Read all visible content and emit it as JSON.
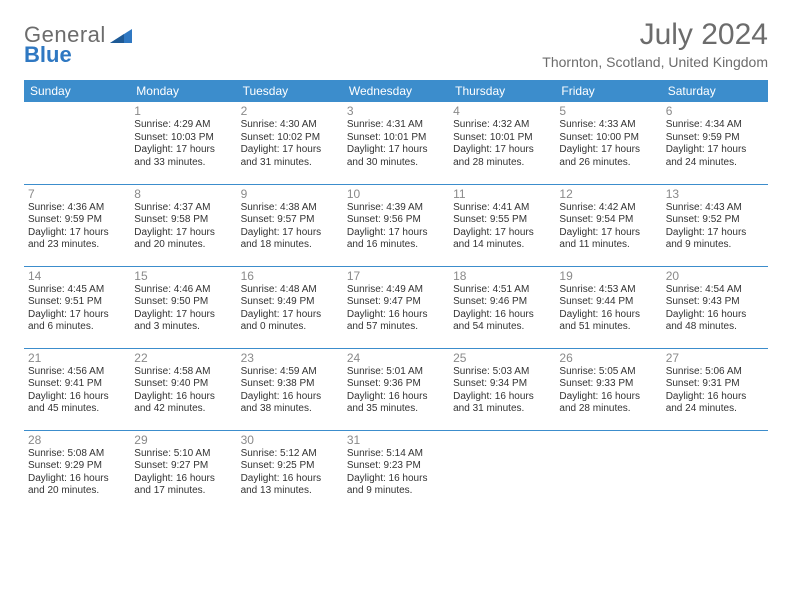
{
  "branding": {
    "word1": "General",
    "word2": "Blue",
    "word1_color": "#6c6c6c",
    "word2_color": "#2f78c2",
    "triangle_color": "#2f78c2"
  },
  "title": {
    "month_year": "July 2024",
    "location": "Thornton, Scotland, United Kingdom",
    "title_color": "#6c6c6c",
    "title_fontsize": 30,
    "location_fontsize": 14
  },
  "table_style": {
    "header_bg": "#3c8dcc",
    "header_text_color": "#ffffff",
    "separator_color": "#3c8dcc",
    "daynum_color": "#8a8a8a",
    "cell_text_color": "#333333",
    "header_fontsize": 12,
    "daynum_fontsize": 12,
    "body_fontsize": 10,
    "columns": 7
  },
  "day_headers": [
    "Sunday",
    "Monday",
    "Tuesday",
    "Wednesday",
    "Thursday",
    "Friday",
    "Saturday"
  ],
  "weeks": [
    [
      null,
      {
        "n": "1",
        "sr": "Sunrise: 4:29 AM",
        "ss": "Sunset: 10:03 PM",
        "d1": "Daylight: 17 hours",
        "d2": "and 33 minutes."
      },
      {
        "n": "2",
        "sr": "Sunrise: 4:30 AM",
        "ss": "Sunset: 10:02 PM",
        "d1": "Daylight: 17 hours",
        "d2": "and 31 minutes."
      },
      {
        "n": "3",
        "sr": "Sunrise: 4:31 AM",
        "ss": "Sunset: 10:01 PM",
        "d1": "Daylight: 17 hours",
        "d2": "and 30 minutes."
      },
      {
        "n": "4",
        "sr": "Sunrise: 4:32 AM",
        "ss": "Sunset: 10:01 PM",
        "d1": "Daylight: 17 hours",
        "d2": "and 28 minutes."
      },
      {
        "n": "5",
        "sr": "Sunrise: 4:33 AM",
        "ss": "Sunset: 10:00 PM",
        "d1": "Daylight: 17 hours",
        "d2": "and 26 minutes."
      },
      {
        "n": "6",
        "sr": "Sunrise: 4:34 AM",
        "ss": "Sunset: 9:59 PM",
        "d1": "Daylight: 17 hours",
        "d2": "and 24 minutes."
      }
    ],
    [
      {
        "n": "7",
        "sr": "Sunrise: 4:36 AM",
        "ss": "Sunset: 9:59 PM",
        "d1": "Daylight: 17 hours",
        "d2": "and 23 minutes."
      },
      {
        "n": "8",
        "sr": "Sunrise: 4:37 AM",
        "ss": "Sunset: 9:58 PM",
        "d1": "Daylight: 17 hours",
        "d2": "and 20 minutes."
      },
      {
        "n": "9",
        "sr": "Sunrise: 4:38 AM",
        "ss": "Sunset: 9:57 PM",
        "d1": "Daylight: 17 hours",
        "d2": "and 18 minutes."
      },
      {
        "n": "10",
        "sr": "Sunrise: 4:39 AM",
        "ss": "Sunset: 9:56 PM",
        "d1": "Daylight: 17 hours",
        "d2": "and 16 minutes."
      },
      {
        "n": "11",
        "sr": "Sunrise: 4:41 AM",
        "ss": "Sunset: 9:55 PM",
        "d1": "Daylight: 17 hours",
        "d2": "and 14 minutes."
      },
      {
        "n": "12",
        "sr": "Sunrise: 4:42 AM",
        "ss": "Sunset: 9:54 PM",
        "d1": "Daylight: 17 hours",
        "d2": "and 11 minutes."
      },
      {
        "n": "13",
        "sr": "Sunrise: 4:43 AM",
        "ss": "Sunset: 9:52 PM",
        "d1": "Daylight: 17 hours",
        "d2": "and 9 minutes."
      }
    ],
    [
      {
        "n": "14",
        "sr": "Sunrise: 4:45 AM",
        "ss": "Sunset: 9:51 PM",
        "d1": "Daylight: 17 hours",
        "d2": "and 6 minutes."
      },
      {
        "n": "15",
        "sr": "Sunrise: 4:46 AM",
        "ss": "Sunset: 9:50 PM",
        "d1": "Daylight: 17 hours",
        "d2": "and 3 minutes."
      },
      {
        "n": "16",
        "sr": "Sunrise: 4:48 AM",
        "ss": "Sunset: 9:49 PM",
        "d1": "Daylight: 17 hours",
        "d2": "and 0 minutes."
      },
      {
        "n": "17",
        "sr": "Sunrise: 4:49 AM",
        "ss": "Sunset: 9:47 PM",
        "d1": "Daylight: 16 hours",
        "d2": "and 57 minutes."
      },
      {
        "n": "18",
        "sr": "Sunrise: 4:51 AM",
        "ss": "Sunset: 9:46 PM",
        "d1": "Daylight: 16 hours",
        "d2": "and 54 minutes."
      },
      {
        "n": "19",
        "sr": "Sunrise: 4:53 AM",
        "ss": "Sunset: 9:44 PM",
        "d1": "Daylight: 16 hours",
        "d2": "and 51 minutes."
      },
      {
        "n": "20",
        "sr": "Sunrise: 4:54 AM",
        "ss": "Sunset: 9:43 PM",
        "d1": "Daylight: 16 hours",
        "d2": "and 48 minutes."
      }
    ],
    [
      {
        "n": "21",
        "sr": "Sunrise: 4:56 AM",
        "ss": "Sunset: 9:41 PM",
        "d1": "Daylight: 16 hours",
        "d2": "and 45 minutes."
      },
      {
        "n": "22",
        "sr": "Sunrise: 4:58 AM",
        "ss": "Sunset: 9:40 PM",
        "d1": "Daylight: 16 hours",
        "d2": "and 42 minutes."
      },
      {
        "n": "23",
        "sr": "Sunrise: 4:59 AM",
        "ss": "Sunset: 9:38 PM",
        "d1": "Daylight: 16 hours",
        "d2": "and 38 minutes."
      },
      {
        "n": "24",
        "sr": "Sunrise: 5:01 AM",
        "ss": "Sunset: 9:36 PM",
        "d1": "Daylight: 16 hours",
        "d2": "and 35 minutes."
      },
      {
        "n": "25",
        "sr": "Sunrise: 5:03 AM",
        "ss": "Sunset: 9:34 PM",
        "d1": "Daylight: 16 hours",
        "d2": "and 31 minutes."
      },
      {
        "n": "26",
        "sr": "Sunrise: 5:05 AM",
        "ss": "Sunset: 9:33 PM",
        "d1": "Daylight: 16 hours",
        "d2": "and 28 minutes."
      },
      {
        "n": "27",
        "sr": "Sunrise: 5:06 AM",
        "ss": "Sunset: 9:31 PM",
        "d1": "Daylight: 16 hours",
        "d2": "and 24 minutes."
      }
    ],
    [
      {
        "n": "28",
        "sr": "Sunrise: 5:08 AM",
        "ss": "Sunset: 9:29 PM",
        "d1": "Daylight: 16 hours",
        "d2": "and 20 minutes."
      },
      {
        "n": "29",
        "sr": "Sunrise: 5:10 AM",
        "ss": "Sunset: 9:27 PM",
        "d1": "Daylight: 16 hours",
        "d2": "and 17 minutes."
      },
      {
        "n": "30",
        "sr": "Sunrise: 5:12 AM",
        "ss": "Sunset: 9:25 PM",
        "d1": "Daylight: 16 hours",
        "d2": "and 13 minutes."
      },
      {
        "n": "31",
        "sr": "Sunrise: 5:14 AM",
        "ss": "Sunset: 9:23 PM",
        "d1": "Daylight: 16 hours",
        "d2": "and 9 minutes."
      },
      null,
      null,
      null
    ]
  ]
}
